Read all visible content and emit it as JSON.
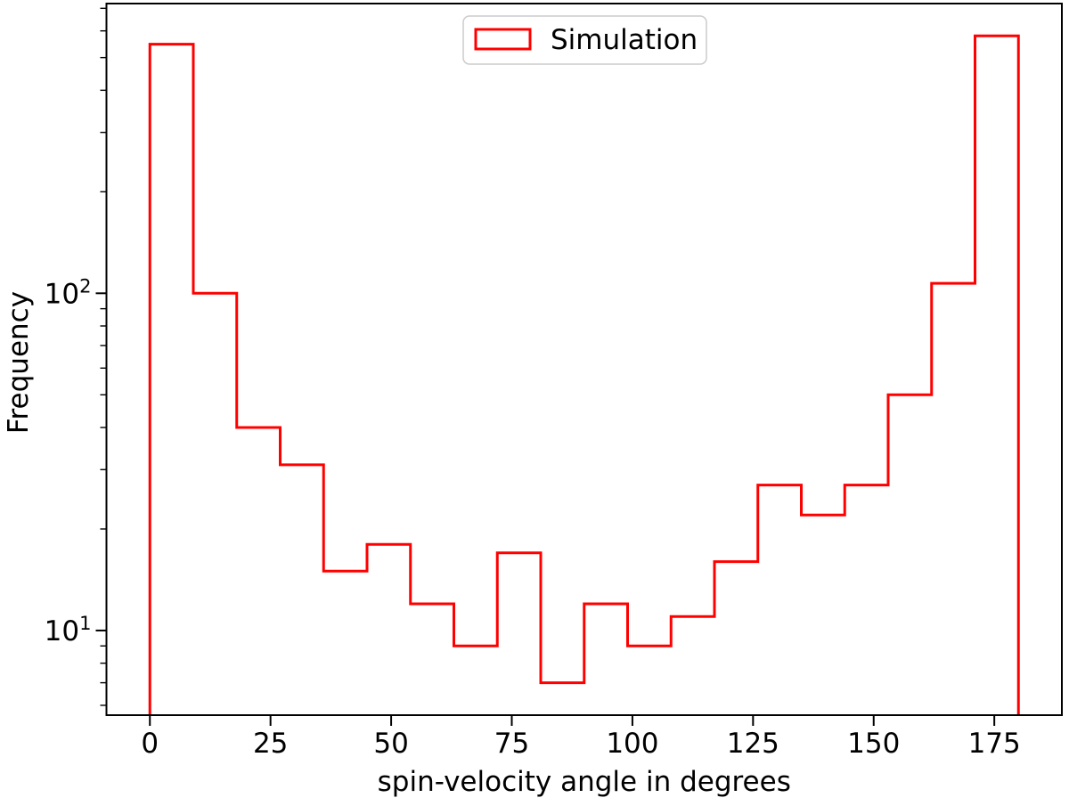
{
  "figure": {
    "background_color": "#ffffff",
    "spine_color": "#000000"
  },
  "chart_data": {
    "type": "bar",
    "subtype": "step-histogram",
    "title": "",
    "xlabel": "spin-velocity angle in degrees",
    "ylabel": "Frequency",
    "xscale": "linear",
    "yscale": "log",
    "xlim": [
      -9,
      189
    ],
    "ylim": [
      5.61,
      723
    ],
    "grid": false,
    "x_major_ticks": [
      0,
      25,
      50,
      75,
      100,
      125,
      150,
      175
    ],
    "y_major_ticks": [
      10,
      100
    ],
    "y_minor_ticks": [
      6,
      7,
      8,
      9,
      20,
      30,
      40,
      50,
      60,
      70,
      80,
      90,
      200,
      300,
      400,
      500,
      600,
      700
    ],
    "bin_edges": [
      0,
      9,
      18,
      27,
      36,
      45,
      54,
      63,
      72,
      81,
      90,
      99,
      108,
      117,
      126,
      135,
      144,
      153,
      162,
      171,
      180
    ],
    "series": [
      {
        "name": "Simulation",
        "color": "#ff0000",
        "counts": [
          548,
          100,
          40,
          31,
          15,
          18,
          12,
          9,
          17,
          7,
          12,
          9,
          11,
          16,
          27,
          22,
          27,
          50,
          107,
          580
        ]
      }
    ],
    "legend": {
      "entries": [
        "Simulation"
      ],
      "position": "upper center",
      "border_color": "#cccccc",
      "background_color": "#ffffff"
    }
  }
}
